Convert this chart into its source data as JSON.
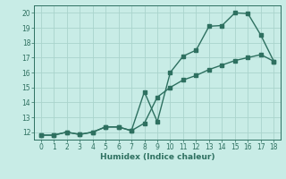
{
  "xlabel": "Humidex (Indice chaleur)",
  "bg_color": "#c8ece6",
  "line_color": "#2e7060",
  "grid_color": "#aad4cc",
  "xlim": [
    -0.5,
    18.5
  ],
  "ylim": [
    11.5,
    20.5
  ],
  "xticks": [
    0,
    1,
    2,
    3,
    4,
    5,
    6,
    7,
    8,
    9,
    10,
    11,
    12,
    13,
    14,
    15,
    16,
    17,
    18
  ],
  "yticks": [
    12,
    13,
    14,
    15,
    16,
    17,
    18,
    19,
    20
  ],
  "line1_x": [
    0,
    1,
    2,
    3,
    4,
    5,
    6,
    7,
    8,
    9,
    10,
    11,
    12,
    13,
    14,
    15,
    16,
    17,
    18
  ],
  "line1_y": [
    11.8,
    11.8,
    12.0,
    11.85,
    12.0,
    12.35,
    12.35,
    12.1,
    14.7,
    12.7,
    16.0,
    17.1,
    17.5,
    19.1,
    19.15,
    20.0,
    19.95,
    18.5,
    16.75
  ],
  "line2_x": [
    0,
    1,
    2,
    3,
    4,
    5,
    6,
    7,
    8,
    9,
    10,
    11,
    12,
    13,
    14,
    15,
    16,
    17,
    18
  ],
  "line2_y": [
    11.8,
    11.8,
    12.0,
    11.85,
    12.0,
    12.35,
    12.35,
    12.1,
    12.6,
    14.35,
    15.0,
    15.5,
    15.8,
    16.2,
    16.5,
    16.8,
    17.0,
    17.2,
    16.75
  ],
  "marker_size": 2.5,
  "line_width": 1.0,
  "tick_fontsize": 5.5,
  "label_fontsize": 6.5
}
